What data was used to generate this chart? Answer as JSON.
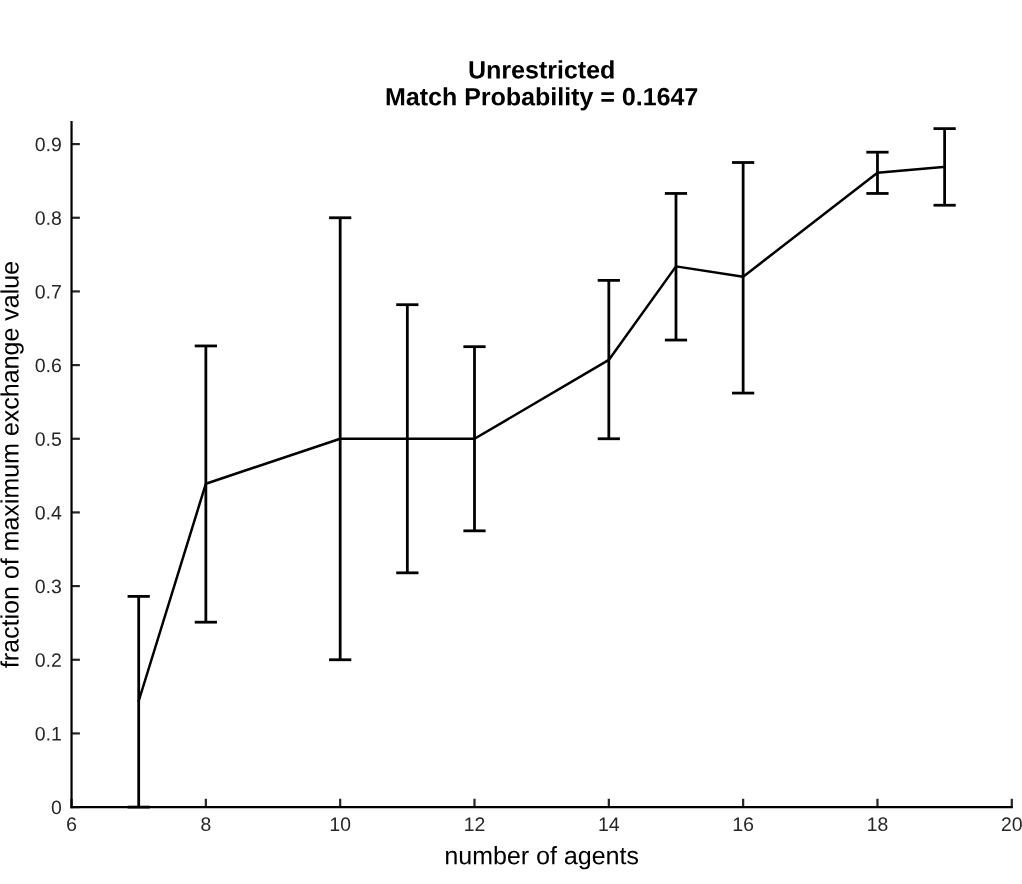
{
  "chart_data": {
    "type": "line",
    "title": "Unrestricted\nMatch Probability = 0.1647",
    "xlabel": "number of agents",
    "ylabel": "fraction of maximum exchange value",
    "x": [
      7,
      8,
      10,
      11,
      12,
      14,
      15,
      16,
      18,
      19
    ],
    "series": [
      {
        "color": "#000000",
        "values": [
          0.144,
          0.439,
          0.5,
          0.5,
          0.5,
          0.607,
          0.734,
          0.72,
          0.861,
          0.869
        ],
        "errors": [
          [
            0,
            0.286
          ],
          [
            0.251,
            0.626
          ],
          [
            0.2,
            0.8
          ],
          [
            0.318,
            0.682
          ],
          [
            0.375,
            0.625
          ],
          [
            0.5,
            0.715
          ],
          [
            0.634,
            0.833
          ],
          [
            0.562,
            0.875
          ],
          [
            0.833,
            0.889
          ],
          [
            0.817,
            0.921
          ]
        ]
      }
    ],
    "xlim": [
      6,
      20
    ],
    "xticks": [
      6,
      8,
      10,
      12,
      14,
      16,
      18,
      20
    ],
    "ylim": [
      0,
      0.93
    ],
    "yticks": [
      0,
      0.1,
      0.2,
      0.3,
      0.4,
      0.5,
      0.6,
      0.7,
      0.8,
      0.9
    ],
    "grid": false,
    "legend": false,
    "marker": "none",
    "line_style": "solid"
  }
}
